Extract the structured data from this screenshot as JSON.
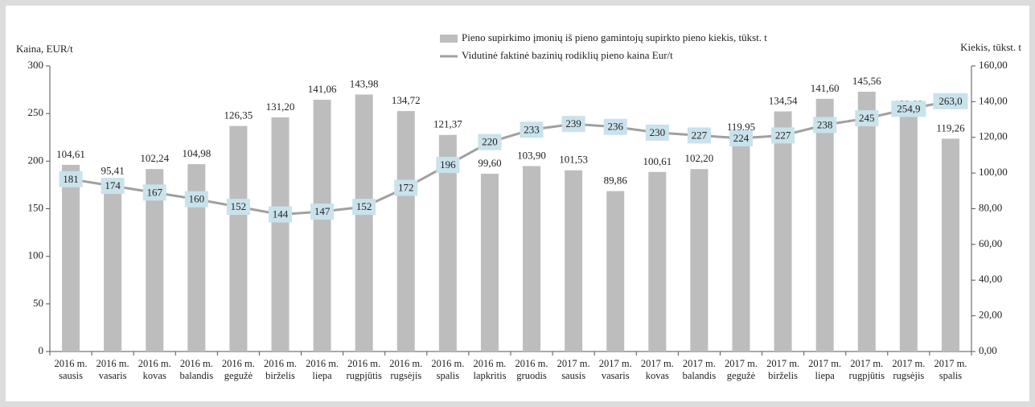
{
  "chart_data": {
    "type": "combo",
    "y_label": "Kaina, EUR/t",
    "y2_label": "Kiekis, tūkst. t",
    "categories": [
      "2016 m.\nsausis",
      "2016 m.\nvasaris",
      "2016 m.\nkovas",
      "2016 m.\nbalandis",
      "2016 m.\ngegužė",
      "2016 m.\nbirželis",
      "2016 m.\nliepa",
      "2016 m.\nrugpjūtis",
      "2016 m.\nrugsėjis",
      "2016 m.\nspalis",
      "2016 m.\nlapkritis",
      "2016 m.\ngruodis",
      "2017 m.\nsausis",
      "2017 m.\nvasaris",
      "2017 m.\nkovas",
      "2017 m.\nbalandis",
      "2017 m.\ngegužė",
      "2017 m.\nbirželis",
      "2017 m.\nliepa",
      "2017 m.\nrugpjūtis",
      "2017 m.\nrugsėjis",
      "2017 m.\nspalis"
    ],
    "series": [
      {
        "name": "Pieno supirkimo įmonių iš pieno gamintojų supirkto pieno kiekis, tūkst. t",
        "type": "bar",
        "axis": "y2",
        "color": "#bdbdbd",
        "values": [
          104.61,
          95.41,
          102.24,
          104.98,
          126.35,
          131.2,
          141.06,
          143.98,
          134.72,
          121.37,
          99.6,
          103.9,
          101.53,
          89.86,
          100.61,
          102.2,
          119.95,
          134.54,
          141.6,
          145.56,
          132.82,
          119.26
        ],
        "value_labels": [
          "104,61",
          "95,41",
          "102,24",
          "104,98",
          "126,35",
          "131,20",
          "141,06",
          "143,98",
          "134,72",
          "121,37",
          "99,60",
          "103,90",
          "101,53",
          "89,86",
          "100,61",
          "102,20",
          "119,95",
          "134,54",
          "141,60",
          "145,56",
          "132,82",
          "119,26"
        ]
      },
      {
        "name": "Vidutinė faktinė bazinių rodiklių pieno kaina Eur/t",
        "type": "line",
        "axis": "y",
        "color": "#a0a0a0",
        "values": [
          181,
          174,
          167,
          160,
          152,
          144,
          147,
          152,
          172,
          196,
          220,
          233,
          239,
          236,
          230,
          227,
          224,
          227,
          238,
          245,
          254.9,
          263.0
        ],
        "value_labels": [
          "181",
          "174",
          "167",
          "160",
          "152",
          "144",
          "147",
          "152",
          "172",
          "196",
          "220",
          "233",
          "239",
          "236",
          "230",
          "227",
          "224",
          "227",
          "238",
          "245",
          "254,9",
          "263,0"
        ]
      }
    ],
    "ylim": [
      0,
      300
    ],
    "yticks": [
      0,
      50,
      100,
      150,
      200,
      250,
      300
    ],
    "y2lim": [
      0,
      160
    ],
    "y2ticks": [
      {
        "value": 0,
        "label": "0,00"
      },
      {
        "value": 20,
        "label": "20,00"
      },
      {
        "value": 40,
        "label": "40,00"
      },
      {
        "value": 60,
        "label": "60,00"
      },
      {
        "value": 80,
        "label": "80,00"
      },
      {
        "value": 100,
        "label": "100,00"
      },
      {
        "value": 120,
        "label": "120,00"
      },
      {
        "value": 140,
        "label": "140,00"
      },
      {
        "value": 160,
        "label": "160,00"
      }
    ]
  }
}
